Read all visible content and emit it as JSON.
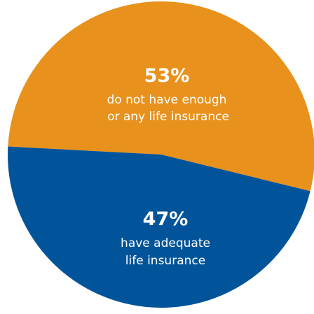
{
  "chart_data": {
    "type": "pie",
    "slices": [
      {
        "value": 53,
        "percent_label": "53%",
        "label_lines": [
          "do not have enough",
          "or any life insurance"
        ],
        "color": "#E8911C"
      },
      {
        "value": 47,
        "percent_label": "47%",
        "label_lines": [
          "have adequate",
          "life insurance"
        ],
        "color": "#02549A"
      }
    ],
    "legend": "none",
    "grid": false
  }
}
